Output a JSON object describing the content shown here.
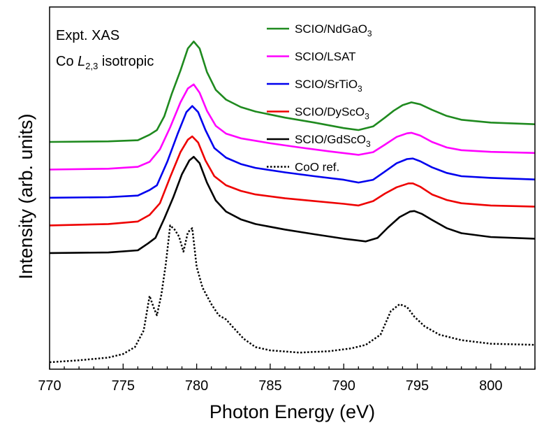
{
  "chart_data": {
    "type": "line",
    "xlabel": "Photon Energy (eV)",
    "ylabel": "Intensity (arb. units)",
    "xlim": [
      770,
      803
    ],
    "xticks": [
      770,
      775,
      780,
      785,
      790,
      795,
      800
    ],
    "y_ticks_shown": false,
    "grid": false,
    "legend_position": "top-right",
    "annotation": {
      "line1": "Expt. XAS",
      "line2_prefix": "Co ",
      "line2_italic": "L",
      "line2_sub": "2,3",
      "line2_suffix": " isotropic"
    },
    "series": [
      {
        "name": "SCIO/NdGaO3",
        "label_base": "SCIO/NdGaO",
        "label_sub": "3",
        "color": "#1f8a1f",
        "dash": "solid",
        "offset": 4.0,
        "points": [
          [
            770,
            0.02
          ],
          [
            774,
            0.04
          ],
          [
            776,
            0.08
          ],
          [
            776.8,
            0.28
          ],
          [
            777.3,
            0.45
          ],
          [
            777.8,
            0.95
          ],
          [
            778.3,
            1.75
          ],
          [
            778.9,
            2.6
          ],
          [
            779.4,
            3.4
          ],
          [
            779.8,
            3.65
          ],
          [
            780.2,
            3.4
          ],
          [
            780.7,
            2.55
          ],
          [
            781.3,
            1.9
          ],
          [
            782,
            1.55
          ],
          [
            783,
            1.28
          ],
          [
            784,
            1.12
          ],
          [
            786,
            0.9
          ],
          [
            788,
            0.72
          ],
          [
            790,
            0.52
          ],
          [
            791,
            0.45
          ],
          [
            792,
            0.58
          ],
          [
            792.8,
            0.9
          ],
          [
            793.4,
            1.15
          ],
          [
            794,
            1.35
          ],
          [
            794.6,
            1.45
          ],
          [
            795.2,
            1.38
          ],
          [
            796,
            1.18
          ],
          [
            797,
            0.96
          ],
          [
            798,
            0.82
          ],
          [
            800,
            0.72
          ],
          [
            803,
            0.66
          ]
        ]
      },
      {
        "name": "SCIO/LSAT",
        "label_base": "SCIO/LSAT",
        "label_sub": "",
        "color": "#ff00ff",
        "dash": "solid",
        "offset": 3.0,
        "points": [
          [
            770,
            0.02
          ],
          [
            774,
            0.05
          ],
          [
            776,
            0.12
          ],
          [
            776.8,
            0.3
          ],
          [
            777.5,
            0.75
          ],
          [
            778.2,
            1.55
          ],
          [
            778.9,
            2.45
          ],
          [
            779.4,
            2.95
          ],
          [
            779.8,
            3.1
          ],
          [
            780.2,
            2.8
          ],
          [
            780.7,
            2.15
          ],
          [
            781.3,
            1.6
          ],
          [
            782,
            1.32
          ],
          [
            783,
            1.15
          ],
          [
            785,
            0.97
          ],
          [
            787,
            0.82
          ],
          [
            789,
            0.68
          ],
          [
            791,
            0.55
          ],
          [
            792,
            0.65
          ],
          [
            792.8,
            0.92
          ],
          [
            793.6,
            1.2
          ],
          [
            794.3,
            1.33
          ],
          [
            794.6,
            1.35
          ],
          [
            795.2,
            1.25
          ],
          [
            796,
            1.02
          ],
          [
            797,
            0.82
          ],
          [
            798,
            0.72
          ],
          [
            800,
            0.66
          ],
          [
            803,
            0.62
          ]
        ]
      },
      {
        "name": "SCIO/SrTiO3",
        "label_base": "SCIO/SrTiO",
        "label_sub": "3",
        "color": "#0000ee",
        "dash": "solid",
        "offset": 2.0,
        "points": [
          [
            770,
            0.0
          ],
          [
            774,
            0.02
          ],
          [
            776,
            0.08
          ],
          [
            776.8,
            0.28
          ],
          [
            777.3,
            0.45
          ],
          [
            778,
            1.3
          ],
          [
            778.7,
            2.3
          ],
          [
            779.3,
            3.1
          ],
          [
            779.7,
            3.32
          ],
          [
            780.1,
            3.1
          ],
          [
            780.6,
            2.45
          ],
          [
            781.2,
            1.8
          ],
          [
            782,
            1.45
          ],
          [
            783,
            1.22
          ],
          [
            784,
            1.08
          ],
          [
            786,
            0.92
          ],
          [
            788,
            0.78
          ],
          [
            790,
            0.65
          ],
          [
            791,
            0.55
          ],
          [
            792,
            0.65
          ],
          [
            792.8,
            0.95
          ],
          [
            793.6,
            1.25
          ],
          [
            794.3,
            1.4
          ],
          [
            794.7,
            1.42
          ],
          [
            795.2,
            1.32
          ],
          [
            796,
            1.1
          ],
          [
            797,
            0.9
          ],
          [
            798,
            0.78
          ],
          [
            800,
            0.72
          ],
          [
            803,
            0.66
          ]
        ]
      },
      {
        "name": "SCIO/DyScO3",
        "label_base": "SCIO/DyScO",
        "label_sub": "3",
        "color": "#ee0000",
        "dash": "solid",
        "offset": 1.0,
        "points": [
          [
            770,
            0.0
          ],
          [
            774,
            0.05
          ],
          [
            776,
            0.14
          ],
          [
            776.8,
            0.38
          ],
          [
            777.5,
            0.8
          ],
          [
            778.2,
            1.75
          ],
          [
            778.9,
            2.65
          ],
          [
            779.4,
            3.1
          ],
          [
            779.7,
            3.22
          ],
          [
            780.1,
            3.0
          ],
          [
            780.6,
            2.35
          ],
          [
            781.2,
            1.78
          ],
          [
            782,
            1.45
          ],
          [
            783,
            1.25
          ],
          [
            784,
            1.12
          ],
          [
            786,
            0.98
          ],
          [
            788,
            0.88
          ],
          [
            790,
            0.78
          ],
          [
            791,
            0.72
          ],
          [
            792,
            0.88
          ],
          [
            792.8,
            1.15
          ],
          [
            793.6,
            1.38
          ],
          [
            794.4,
            1.52
          ],
          [
            794.7,
            1.52
          ],
          [
            795.2,
            1.4
          ],
          [
            796,
            1.12
          ],
          [
            797,
            0.92
          ],
          [
            798,
            0.8
          ],
          [
            800,
            0.72
          ],
          [
            803,
            0.68
          ]
        ]
      },
      {
        "name": "SCIO/GdScO3",
        "label_base": "SCIO/GdScO",
        "label_sub": "3",
        "color": "#000000",
        "dash": "solid",
        "offset": 0.0,
        "points": [
          [
            770,
            0.0
          ],
          [
            774,
            0.02
          ],
          [
            776,
            0.1
          ],
          [
            776.7,
            0.35
          ],
          [
            777.2,
            0.55
          ],
          [
            777.8,
            1.25
          ],
          [
            778.4,
            2.0
          ],
          [
            779,
            2.85
          ],
          [
            779.5,
            3.35
          ],
          [
            779.8,
            3.48
          ],
          [
            780.2,
            3.25
          ],
          [
            780.7,
            2.55
          ],
          [
            781.3,
            1.9
          ],
          [
            782,
            1.5
          ],
          [
            783,
            1.22
          ],
          [
            784,
            1.05
          ],
          [
            786,
            0.85
          ],
          [
            788,
            0.68
          ],
          [
            790,
            0.52
          ],
          [
            791.5,
            0.42
          ],
          [
            792.3,
            0.55
          ],
          [
            793,
            0.92
          ],
          [
            793.8,
            1.3
          ],
          [
            794.5,
            1.5
          ],
          [
            794.8,
            1.52
          ],
          [
            795.3,
            1.42
          ],
          [
            796,
            1.2
          ],
          [
            797,
            0.9
          ],
          [
            798,
            0.72
          ],
          [
            800,
            0.58
          ],
          [
            803,
            0.52
          ]
        ]
      },
      {
        "name": "CoO ref.",
        "label_base": "CoO ref.",
        "label_sub": "",
        "color": "#000000",
        "dash": "dotted",
        "offset": -4.0,
        "points": [
          [
            770,
            0.05
          ],
          [
            772,
            0.12
          ],
          [
            774,
            0.22
          ],
          [
            775,
            0.35
          ],
          [
            775.8,
            0.6
          ],
          [
            776.4,
            1.2
          ],
          [
            776.8,
            2.45
          ],
          [
            777.1,
            2.0
          ],
          [
            777.3,
            1.75
          ],
          [
            777.6,
            2.5
          ],
          [
            777.9,
            3.6
          ],
          [
            778.2,
            5.0
          ],
          [
            778.5,
            4.85
          ],
          [
            778.8,
            4.6
          ],
          [
            779.1,
            4.05
          ],
          [
            779.4,
            4.75
          ],
          [
            779.7,
            4.9
          ],
          [
            780,
            3.5
          ],
          [
            780.4,
            2.75
          ],
          [
            781,
            2.15
          ],
          [
            781.5,
            1.75
          ],
          [
            782,
            1.6
          ],
          [
            782.5,
            1.3
          ],
          [
            783.2,
            0.9
          ],
          [
            784,
            0.6
          ],
          [
            785,
            0.48
          ],
          [
            787,
            0.4
          ],
          [
            789,
            0.45
          ],
          [
            790.5,
            0.55
          ],
          [
            791.5,
            0.68
          ],
          [
            792.5,
            1.05
          ],
          [
            793.2,
            1.9
          ],
          [
            793.8,
            2.15
          ],
          [
            794.3,
            2.05
          ],
          [
            794.8,
            1.7
          ],
          [
            795.5,
            1.35
          ],
          [
            796.5,
            1.05
          ],
          [
            798,
            0.85
          ],
          [
            800,
            0.72
          ],
          [
            803,
            0.68
          ]
        ]
      }
    ]
  }
}
